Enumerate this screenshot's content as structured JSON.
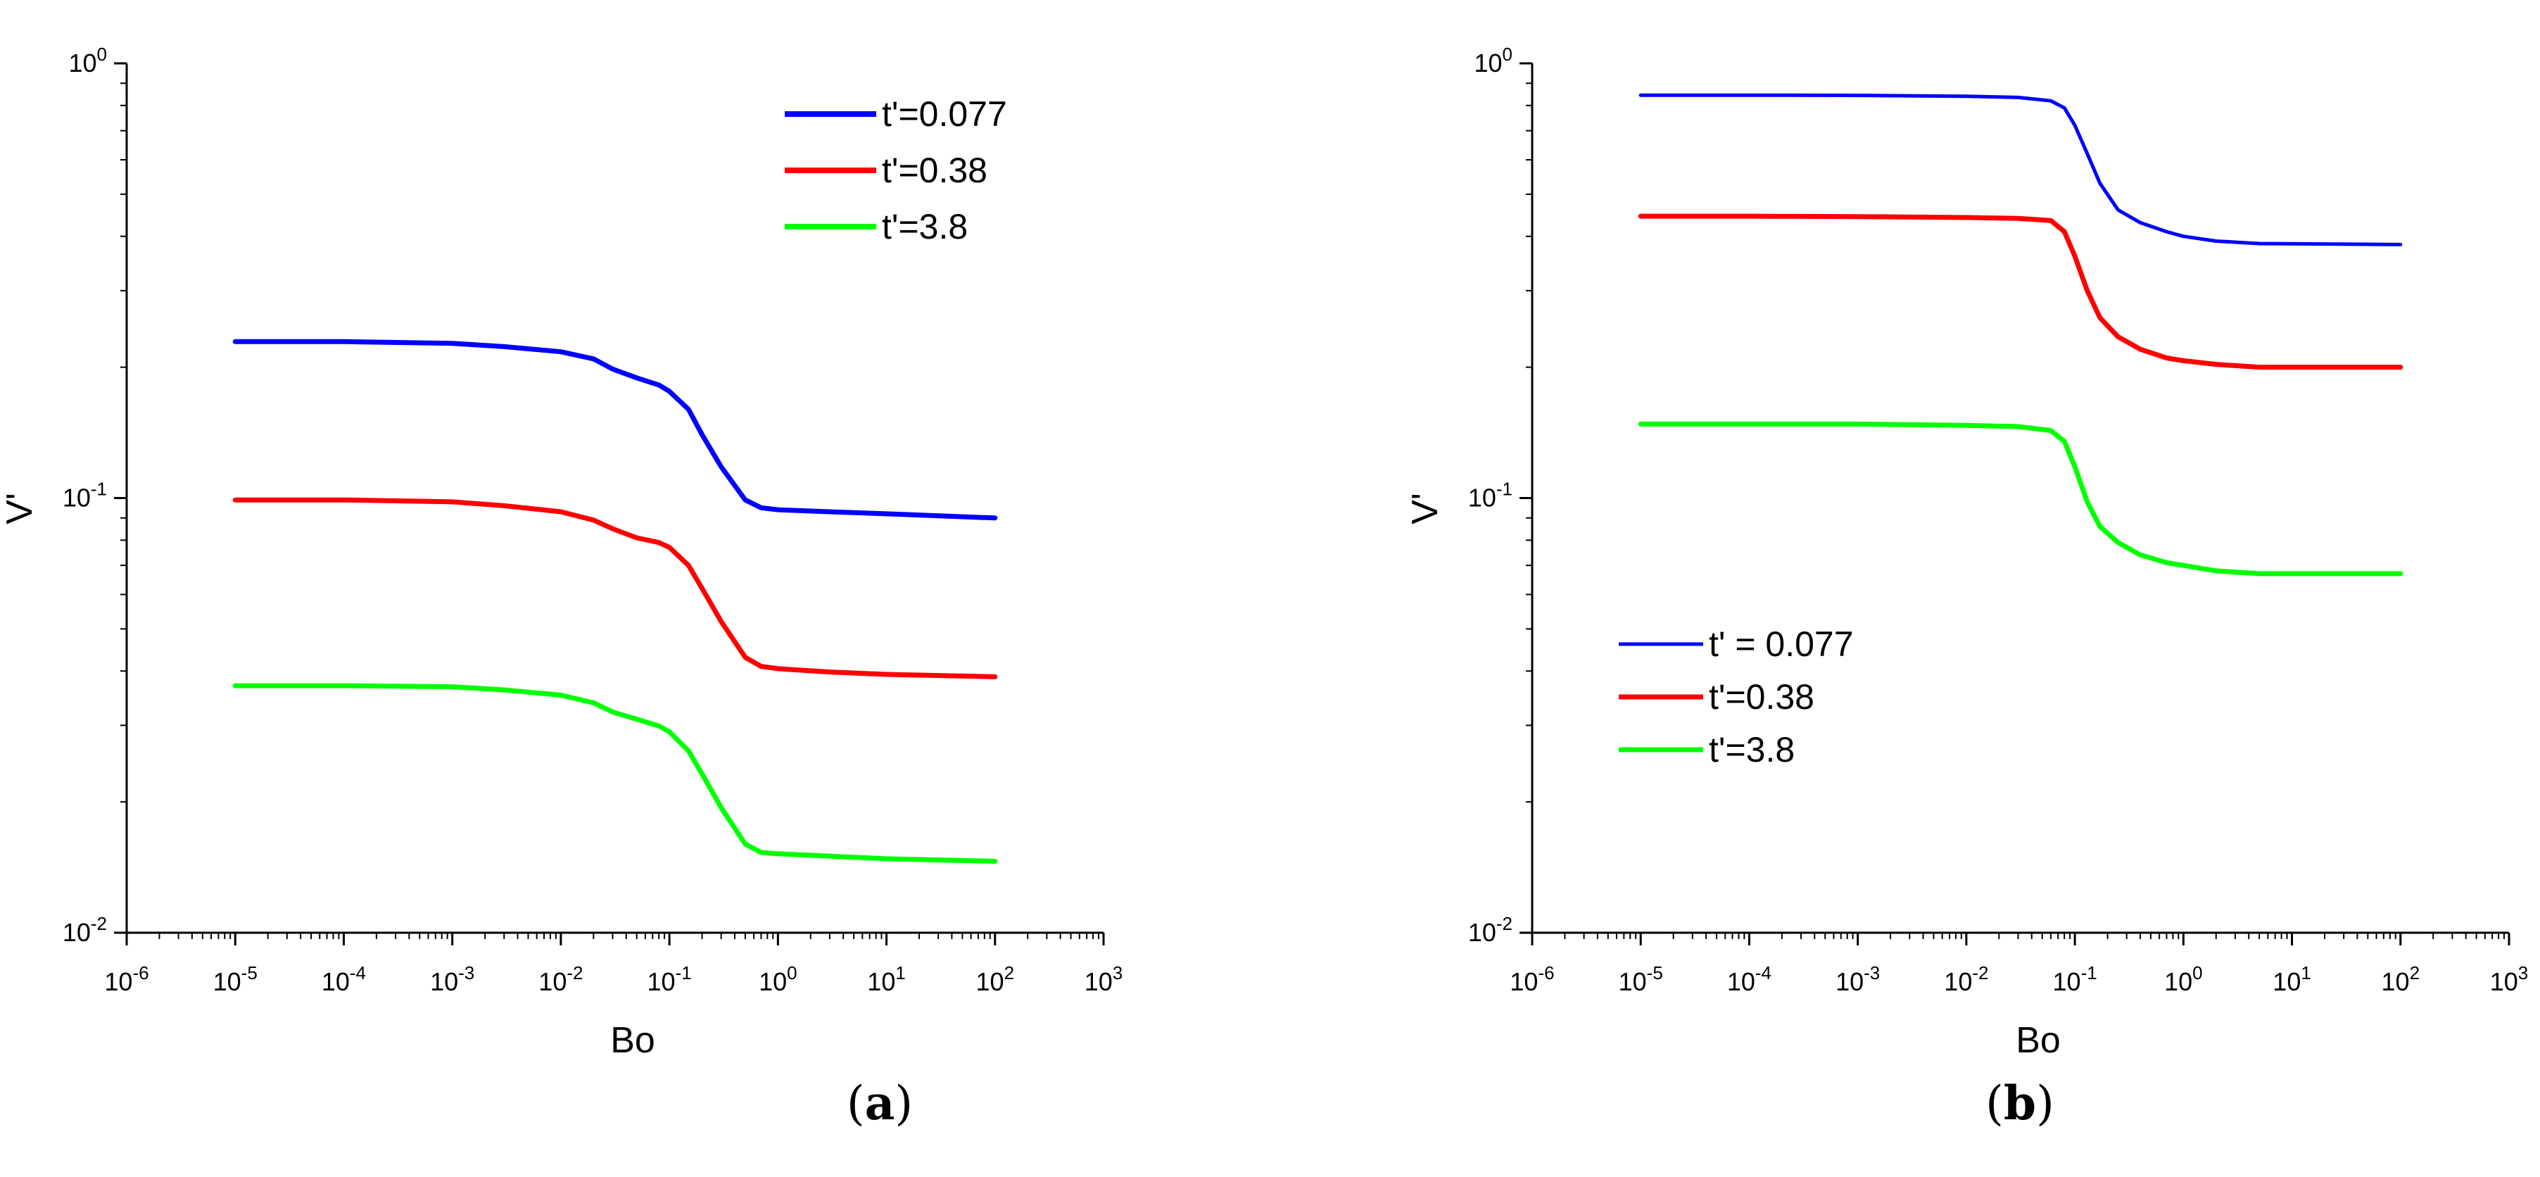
{
  "chart_data": [
    {
      "panel": "a",
      "caption": "(a)",
      "type": "line",
      "xscale": "log",
      "yscale": "log",
      "xlabel": "Bo",
      "ylabel": "V'",
      "xlim": [
        1e-06,
        1000.0
      ],
      "ylim": [
        0.01,
        1
      ],
      "x_ticks": [
        {
          "base": "10",
          "exp": "-6"
        },
        {
          "base": "10",
          "exp": "-5"
        },
        {
          "base": "10",
          "exp": "-4"
        },
        {
          "base": "10",
          "exp": "-3"
        },
        {
          "base": "10",
          "exp": "-2"
        },
        {
          "base": "10",
          "exp": "-1"
        },
        {
          "base": "10",
          "exp": "0"
        },
        {
          "base": "10",
          "exp": "1"
        },
        {
          "base": "10",
          "exp": "2"
        },
        {
          "base": "10",
          "exp": "3"
        }
      ],
      "y_ticks": [
        {
          "base": "10",
          "exp": "-2"
        },
        {
          "base": "10",
          "exp": "-1"
        },
        {
          "base": "10",
          "exp": "0"
        }
      ],
      "legend_position": "top-right",
      "series": [
        {
          "name": "t'=0.077",
          "color": "#0000ff",
          "x": [
            1e-05,
            0.0001,
            0.001,
            0.003,
            0.01,
            0.02,
            0.03,
            0.05,
            0.08,
            0.1,
            0.15,
            0.2,
            0.3,
            0.5,
            0.7,
            1,
            3,
            10,
            100
          ],
          "y": [
            0.229,
            0.229,
            0.227,
            0.223,
            0.217,
            0.209,
            0.198,
            0.189,
            0.182,
            0.176,
            0.16,
            0.14,
            0.118,
            0.099,
            0.095,
            0.094,
            0.093,
            0.092,
            0.09
          ]
        },
        {
          "name": "t'=0.38",
          "color": "#ff0000",
          "x": [
            1e-05,
            0.0001,
            0.001,
            0.003,
            0.01,
            0.02,
            0.03,
            0.05,
            0.08,
            0.1,
            0.15,
            0.2,
            0.3,
            0.5,
            0.7,
            1,
            3,
            10,
            100
          ],
          "y": [
            0.099,
            0.099,
            0.098,
            0.096,
            0.093,
            0.089,
            0.085,
            0.081,
            0.079,
            0.077,
            0.07,
            0.062,
            0.052,
            0.043,
            0.041,
            0.0405,
            0.0398,
            0.0393,
            0.0388
          ]
        },
        {
          "name": "t'=3.8",
          "color": "#00ff00",
          "x": [
            1e-05,
            0.0001,
            0.001,
            0.003,
            0.01,
            0.02,
            0.03,
            0.05,
            0.08,
            0.1,
            0.15,
            0.2,
            0.3,
            0.5,
            0.7,
            1,
            3,
            10,
            100
          ],
          "y": [
            0.037,
            0.037,
            0.0368,
            0.0362,
            0.0352,
            0.0338,
            0.0322,
            0.031,
            0.0299,
            0.029,
            0.0262,
            0.0232,
            0.0194,
            0.016,
            0.0153,
            0.0152,
            0.015,
            0.0148,
            0.0146
          ]
        }
      ]
    },
    {
      "panel": "b",
      "caption": "(b)",
      "type": "line",
      "xscale": "log",
      "yscale": "log",
      "xlabel": "Bo",
      "ylabel": "V'",
      "xlim": [
        1e-06,
        1000.0
      ],
      "ylim": [
        0.01,
        1
      ],
      "x_ticks": [
        {
          "base": "10",
          "exp": "-6"
        },
        {
          "base": "10",
          "exp": "-5"
        },
        {
          "base": "10",
          "exp": "-4"
        },
        {
          "base": "10",
          "exp": "-3"
        },
        {
          "base": "10",
          "exp": "-2"
        },
        {
          "base": "10",
          "exp": "-1"
        },
        {
          "base": "10",
          "exp": "0"
        },
        {
          "base": "10",
          "exp": "1"
        },
        {
          "base": "10",
          "exp": "2"
        },
        {
          "base": "10",
          "exp": "3"
        }
      ],
      "y_ticks": [
        {
          "base": "10",
          "exp": "-2"
        },
        {
          "base": "10",
          "exp": "-1"
        },
        {
          "base": "10",
          "exp": "0"
        }
      ],
      "legend_position": "bottom-left",
      "series": [
        {
          "name": "t' = 0.077",
          "color": "#0000ff",
          "x": [
            1e-05,
            0.0001,
            0.001,
            0.01,
            0.03,
            0.06,
            0.08,
            0.1,
            0.13,
            0.17,
            0.25,
            0.4,
            0.7,
            1,
            2,
            5,
            100
          ],
          "y": [
            0.845,
            0.845,
            0.844,
            0.84,
            0.835,
            0.82,
            0.79,
            0.72,
            0.62,
            0.53,
            0.46,
            0.43,
            0.41,
            0.4,
            0.39,
            0.385,
            0.383
          ]
        },
        {
          "name": "t'=0.38",
          "color": "#ff0000",
          "x": [
            1e-05,
            0.0001,
            0.001,
            0.01,
            0.03,
            0.06,
            0.08,
            0.1,
            0.13,
            0.17,
            0.25,
            0.4,
            0.7,
            1,
            2,
            5,
            100
          ],
          "y": [
            0.445,
            0.445,
            0.444,
            0.442,
            0.44,
            0.435,
            0.41,
            0.36,
            0.3,
            0.26,
            0.235,
            0.22,
            0.21,
            0.207,
            0.203,
            0.2,
            0.2
          ]
        },
        {
          "name": "t'=3.8",
          "color": "#00ff00",
          "x": [
            1e-05,
            0.0001,
            0.001,
            0.01,
            0.03,
            0.06,
            0.08,
            0.1,
            0.13,
            0.17,
            0.25,
            0.4,
            0.7,
            1,
            2,
            5,
            100
          ],
          "y": [
            0.148,
            0.148,
            0.148,
            0.147,
            0.146,
            0.143,
            0.135,
            0.118,
            0.098,
            0.086,
            0.079,
            0.074,
            0.071,
            0.07,
            0.068,
            0.067,
            0.067
          ]
        }
      ]
    }
  ]
}
